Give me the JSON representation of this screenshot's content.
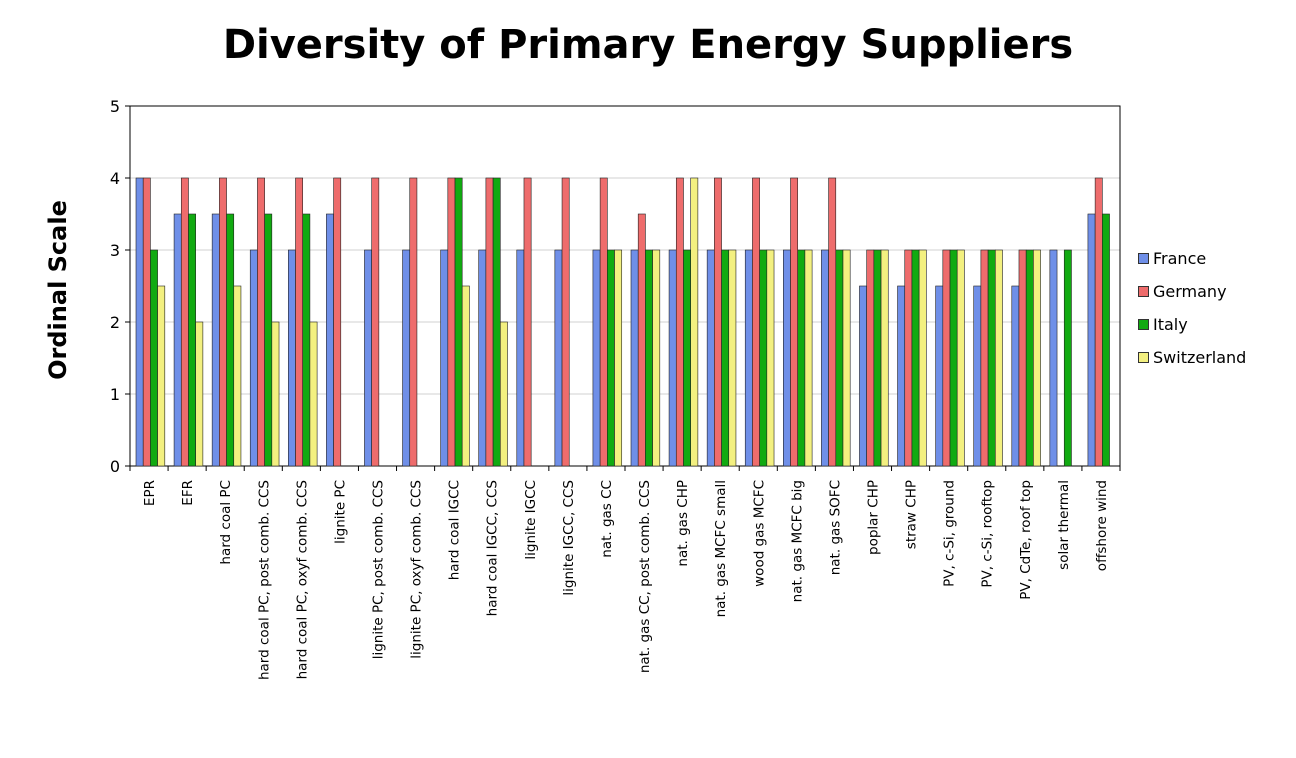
{
  "chart_data": {
    "type": "bar",
    "title": "Diversity of Primary Energy Suppliers",
    "ylabel": "Ordinal Scale",
    "xlabel": "",
    "ylim": [
      0,
      5
    ],
    "yticks": [
      "0",
      "1",
      "2",
      "3",
      "4",
      "5"
    ],
    "grid": true,
    "legend_position": "right",
    "categories": [
      "EPR",
      "EFR",
      "hard coal PC",
      "hard coal PC, post comb. CCS",
      "hard coal PC, oxyf comb. CCS",
      "lignite PC",
      "lignite PC, post comb. CCS",
      "lignite PC, oxyf comb. CCS",
      "hard coal IGCC",
      "hard coal IGCC, CCS",
      "lignite IGCC",
      "lignite IGCC, CCS",
      "nat. gas CC",
      "nat. gas CC, post comb. CCS",
      "nat. gas CHP",
      "nat. gas MCFC small",
      "wood gas MCFC",
      "nat. gas MCFC big",
      "nat. gas SOFC",
      "poplar CHP",
      "straw CHP",
      "PV, c-Si, ground",
      "PV, c-Si, rooftop",
      "PV, CdTe, roof top",
      "solar thermal",
      "offshore wind"
    ],
    "series": [
      {
        "name": "France",
        "color": "#6f8fe8",
        "values": [
          4,
          3.5,
          3.5,
          3,
          3,
          3.5,
          3,
          3,
          3,
          3,
          3,
          3,
          3,
          3,
          3,
          3,
          3,
          3,
          3,
          2.5,
          2.5,
          2.5,
          2.5,
          2.5,
          3,
          3.5
        ]
      },
      {
        "name": "Germany",
        "color": "#ee6c6c",
        "values": [
          4,
          4,
          4,
          4,
          4,
          4,
          4,
          4,
          4,
          4,
          4,
          4,
          4,
          3.5,
          4,
          4,
          4,
          4,
          4,
          3,
          3,
          3,
          3,
          3,
          0,
          4
        ]
      },
      {
        "name": "Italy",
        "color": "#11aa11",
        "values": [
          3,
          3.5,
          3.5,
          3.5,
          3.5,
          0,
          0,
          0,
          4,
          4,
          0,
          0,
          3,
          3,
          3,
          3,
          3,
          3,
          3,
          3,
          3,
          3,
          3,
          3,
          3,
          3.5
        ]
      },
      {
        "name": "Switzerland",
        "color": "#f3f080",
        "values": [
          2.5,
          2,
          2.5,
          2,
          2,
          0,
          0,
          0,
          2.5,
          2,
          0,
          0,
          3,
          3,
          4,
          3,
          3,
          3,
          3,
          3,
          3,
          3,
          3,
          3,
          0,
          0
        ]
      }
    ]
  }
}
